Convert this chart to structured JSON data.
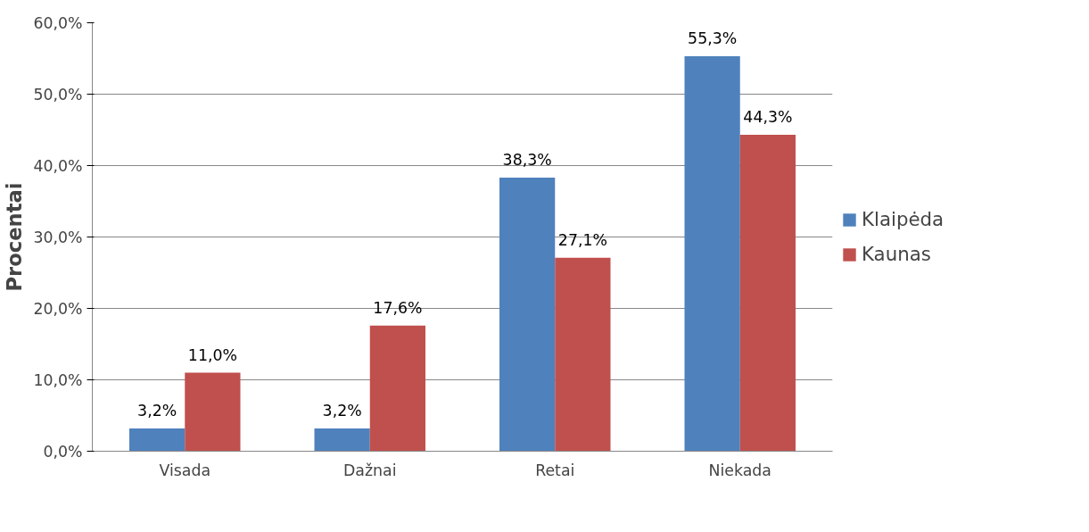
{
  "chart_data": {
    "type": "bar",
    "ylabel": "Procentai",
    "categories": [
      "Visada",
      "Dažnai",
      "Retai",
      "Niekada"
    ],
    "series": [
      {
        "name": "Klaipėda",
        "color": "#4f81bd",
        "values": [
          3.2,
          3.2,
          38.3,
          55.3
        ],
        "value_labels": [
          "3,2%",
          "3,2%",
          "38,3%",
          "55,3%"
        ]
      },
      {
        "name": "Kaunas",
        "color": "#c0504d",
        "values": [
          11.0,
          17.6,
          27.1,
          44.3
        ],
        "value_labels": [
          "11,0%",
          "17,6%",
          "27,1%",
          "44,3%"
        ]
      }
    ],
    "ylim": [
      0,
      60
    ],
    "yticks": [
      {
        "value": 0,
        "label": "0,0%"
      },
      {
        "value": 10,
        "label": "10,0%"
      },
      {
        "value": 20,
        "label": "20,0%"
      },
      {
        "value": 30,
        "label": "30,0%"
      },
      {
        "value": 40,
        "label": "40,0%"
      },
      {
        "value": 50,
        "label": "50,0%"
      },
      {
        "value": 60,
        "label": "60,0%"
      }
    ],
    "grid": "y",
    "legend": "right"
  }
}
